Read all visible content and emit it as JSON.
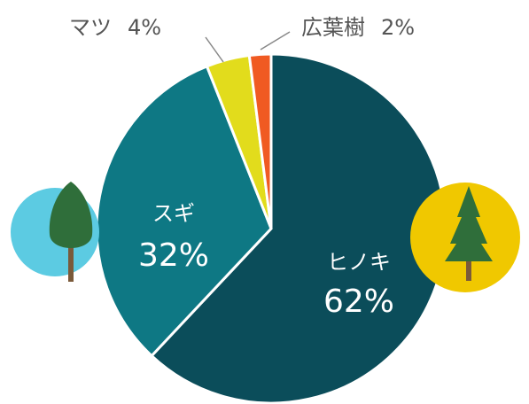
{
  "chart_data": {
    "type": "pie",
    "categories": [
      "ヒノキ",
      "スギ",
      "マツ",
      "広葉樹"
    ],
    "values": [
      62,
      32,
      4,
      2
    ],
    "value_labels": [
      "62%",
      "32%",
      "4%",
      "2%"
    ],
    "colors": [
      "#0b4d5a",
      "#0e7884",
      "#e2dc1c",
      "#f05a22"
    ]
  }
}
